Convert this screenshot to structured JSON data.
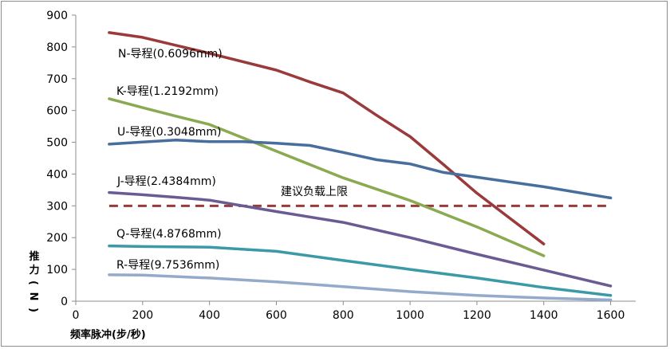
{
  "chart_data": {
    "type": "line",
    "xlabel": "频率脉冲(步/秒)",
    "ylabel": "推力(N)",
    "xlim": [
      0,
      1600
    ],
    "ylim": [
      0,
      900
    ],
    "x_ticks": [
      0,
      200,
      400,
      600,
      800,
      1000,
      1200,
      1400,
      1600
    ],
    "y_ticks": [
      0,
      100,
      200,
      300,
      400,
      500,
      600,
      700,
      800,
      900
    ],
    "legend": "inline labels",
    "series": [
      {
        "name": "N-导程(0.6096mm)",
        "color": "#9b3a3a",
        "x": [
          100,
          200,
          300,
          400,
          600,
          700,
          800,
          900,
          1000,
          1100,
          1200,
          1400
        ],
        "y": [
          845,
          830,
          805,
          780,
          727,
          690,
          655,
          585,
          518,
          430,
          340,
          180
        ]
      },
      {
        "name": "K-导程(1.2192mm)",
        "color": "#8aaa52",
        "x": [
          100,
          200,
          300,
          400,
          500,
          600,
          700,
          800,
          1000,
          1200,
          1400
        ],
        "y": [
          637,
          609,
          582,
          556,
          514,
          472,
          430,
          388,
          317,
          234,
          143
        ]
      },
      {
        "name": "U-导程(0.3048mm)",
        "color": "#476e9c",
        "x": [
          100,
          200,
          300,
          400,
          500,
          600,
          700,
          800,
          900,
          1000,
          1100,
          1200,
          1400,
          1600
        ],
        "y": [
          494,
          501,
          507,
          502,
          502,
          497,
          490,
          468,
          445,
          432,
          405,
          390,
          360,
          325
        ]
      },
      {
        "name": "J-导程(2.4384mm)",
        "color": "#6b5b93",
        "x": [
          100,
          200,
          300,
          400,
          600,
          800,
          1000,
          1200,
          1400,
          1600
        ],
        "y": [
          342,
          335,
          327,
          318,
          282,
          248,
          200,
          148,
          98,
          48
        ]
      },
      {
        "name": "Q-导程(4.8768mm)",
        "color": "#3a9aa6",
        "x": [
          100,
          200,
          400,
          600,
          800,
          1000,
          1200,
          1400,
          1600
        ],
        "y": [
          174,
          172,
          170,
          157,
          128,
          100,
          73,
          43,
          18
        ]
      },
      {
        "name": "R-导程(9.7536mm)",
        "color": "#94aacb",
        "x": [
          100,
          200,
          400,
          600,
          800,
          1000,
          1200,
          1400,
          1600
        ],
        "y": [
          83,
          82,
          73,
          61,
          46,
          30,
          18,
          10,
          4
        ]
      }
    ],
    "reference_line": {
      "name": "建议负载上限",
      "y": 300,
      "color": "#9b3a3a",
      "style": "dashed"
    }
  }
}
